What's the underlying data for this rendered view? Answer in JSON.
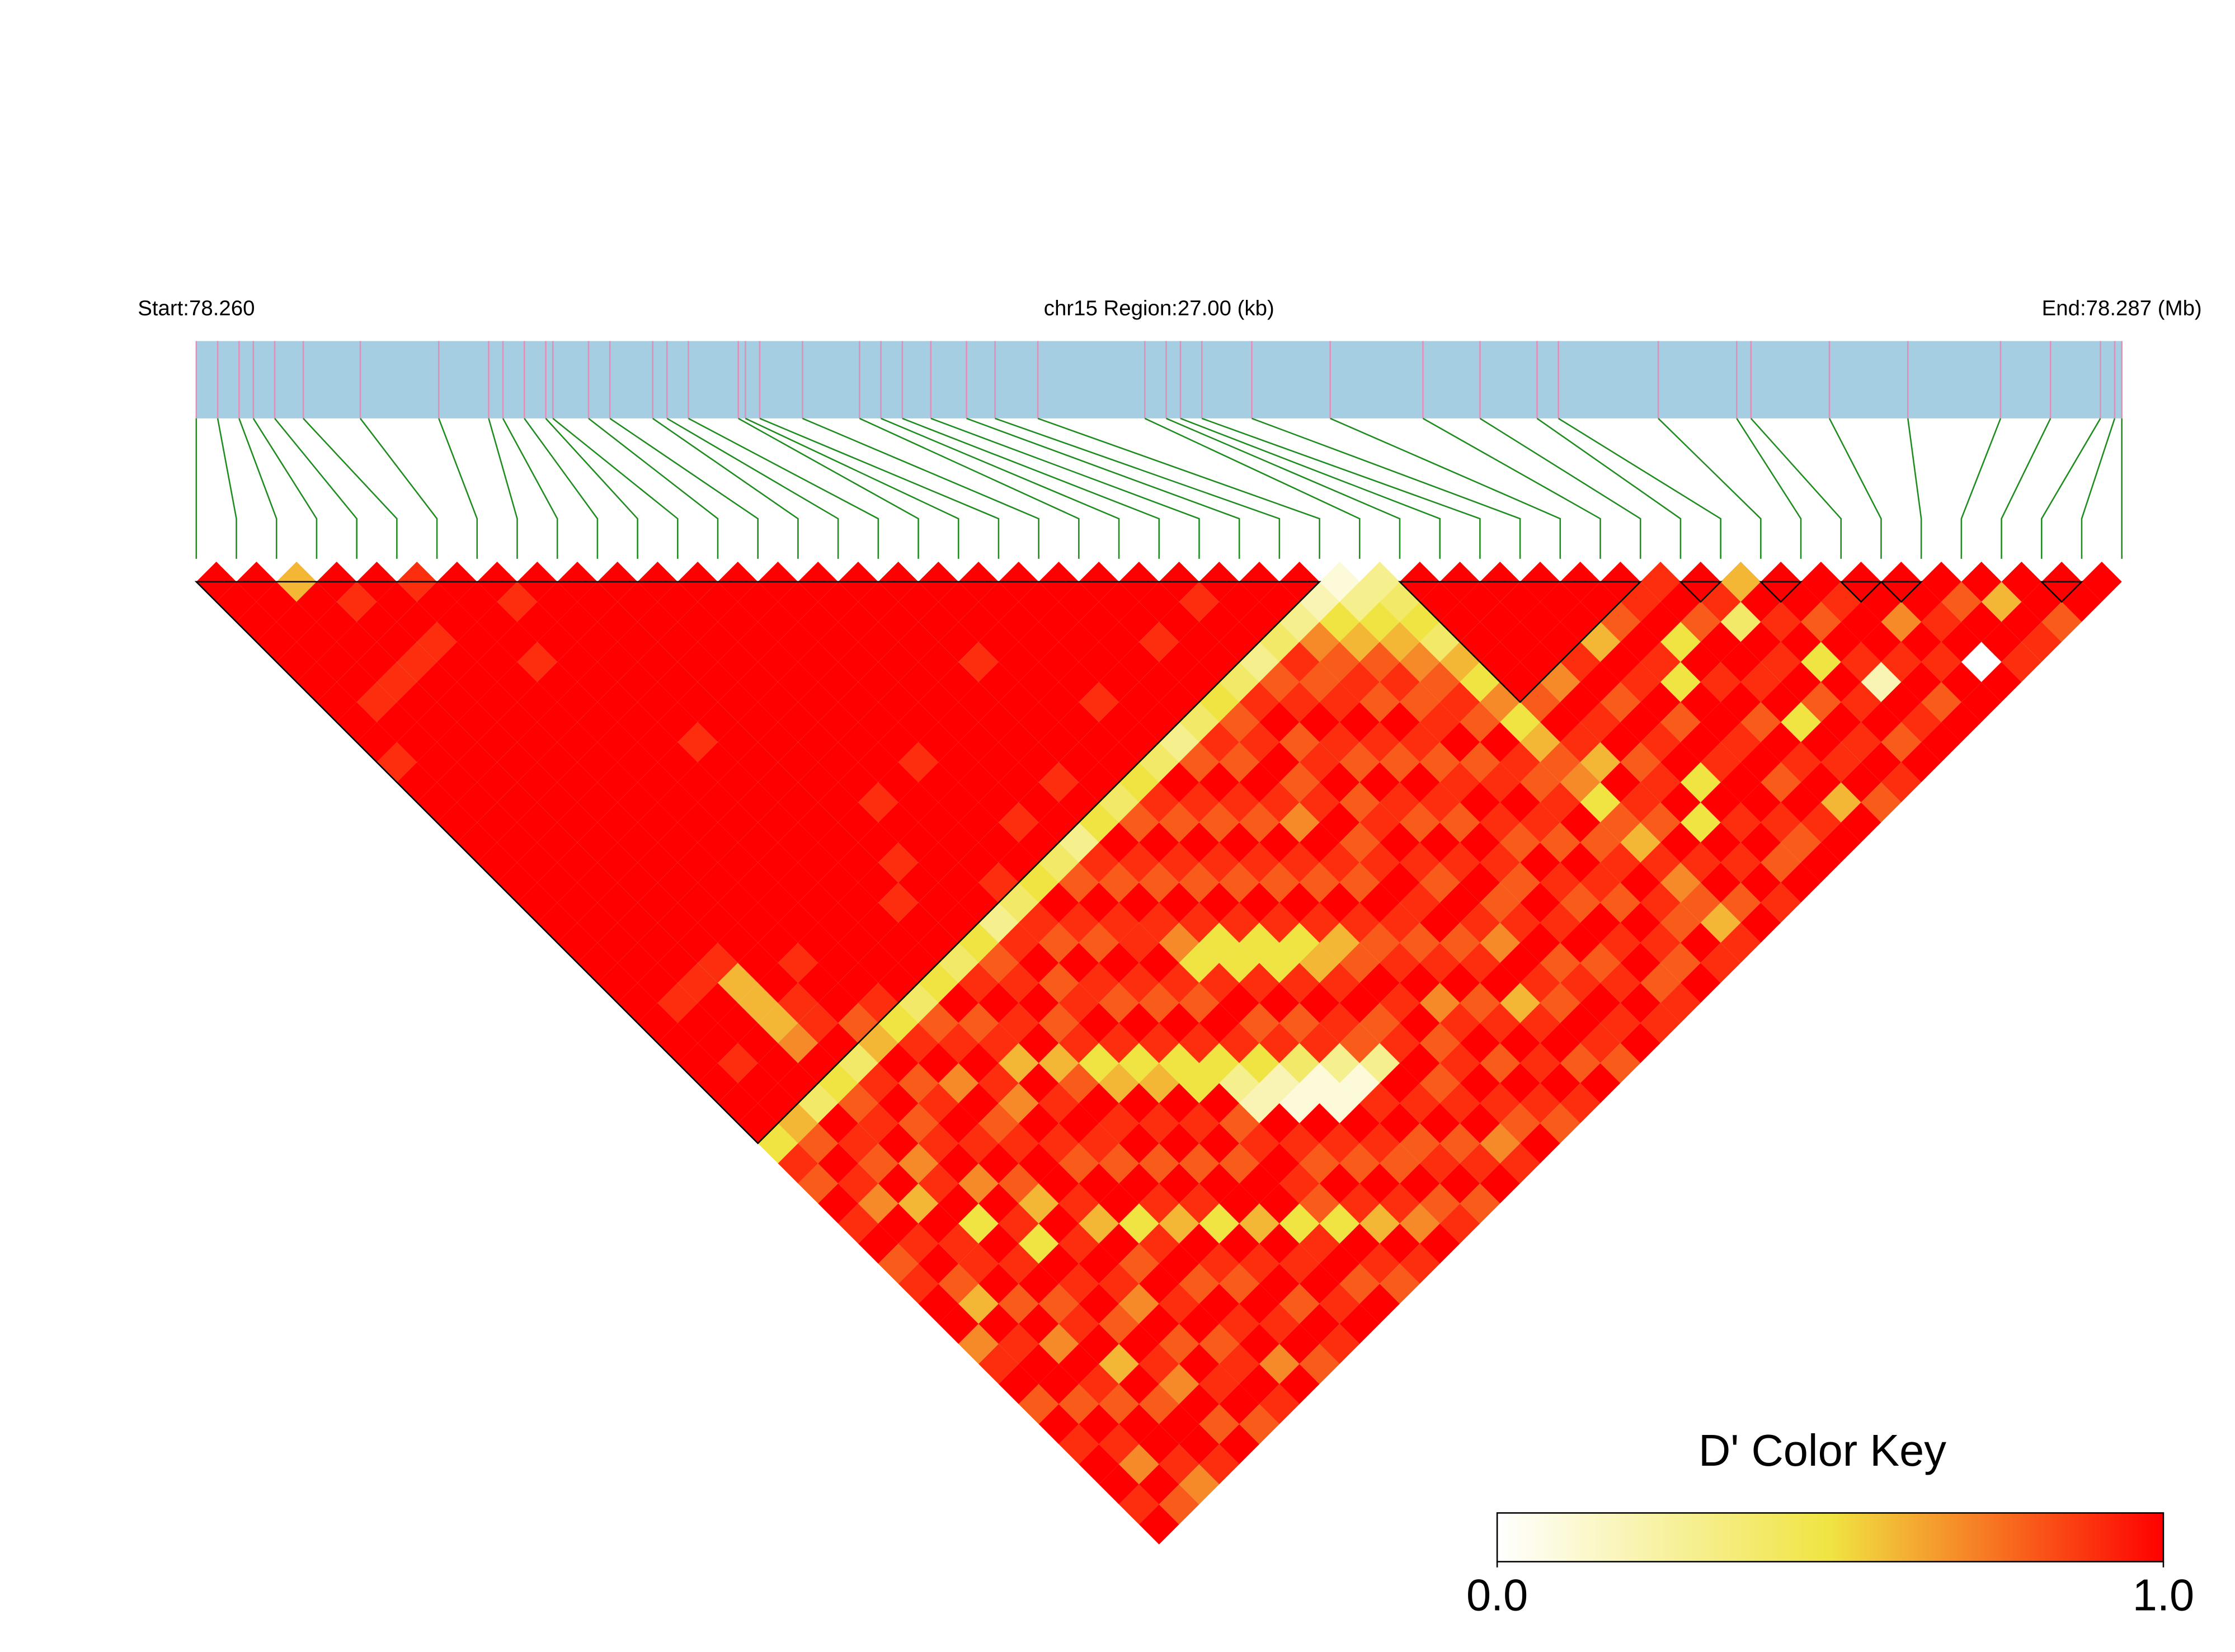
{
  "chart_data": {
    "type": "ld-heatmap",
    "start_label": "Start:78.260",
    "region_label": "chr15 Region:27.00 (kb)",
    "end_label": "End:78.287 (Mb)",
    "xlim": [
      78.26,
      78.287
    ],
    "bar_color": "#a6cee3",
    "snp_line_color": "#e28fb8",
    "connector_color": "#1e8c1e",
    "block_outline_color": "#000000",
    "snp_positions": [
      78.26,
      78.2603,
      78.2606,
      78.2608,
      78.2611,
      78.2615,
      78.2623,
      78.2634,
      78.2641,
      78.2643,
      78.2646,
      78.2649,
      78.265,
      78.2655,
      78.2658,
      78.2664,
      78.2666,
      78.2669,
      78.2676,
      78.2677,
      78.2679,
      78.2685,
      78.2693,
      78.2696,
      78.2699,
      78.2703,
      78.2708,
      78.2712,
      78.2718,
      78.2733,
      78.2736,
      78.2738,
      78.2741,
      78.2748,
      78.2759,
      78.2772,
      78.278,
      78.2788,
      78.2791,
      78.2805,
      78.2816,
      78.2818,
      78.2829,
      78.284,
      78.2853,
      78.286,
      78.2867,
      78.2869,
      78.287
    ],
    "blocks": [
      [
        0,
        28
      ],
      [
        30,
        36
      ],
      [
        37,
        38
      ],
      [
        39,
        40
      ],
      [
        41,
        42
      ],
      [
        42,
        43
      ],
      [
        46,
        47
      ]
    ],
    "d_prime": [
      [
        1,
        1,
        1,
        1,
        1,
        1,
        1,
        1,
        1,
        0.9,
        1,
        1,
        1,
        1,
        1,
        1,
        1,
        1,
        1,
        1,
        1,
        1,
        1,
        1,
        1,
        1,
        1,
        1,
        0.5,
        0.9,
        0.8,
        1,
        0.9,
        1,
        0.8,
        0.9,
        1,
        1,
        0.7,
        0.9,
        1,
        0.8,
        1,
        0.9,
        1,
        1,
        0.9,
        1
      ],
      [
        1,
        1,
        1,
        1,
        1,
        1,
        0.9,
        1,
        1,
        1,
        1,
        1,
        1,
        1,
        1,
        1,
        1,
        1,
        1,
        1,
        1,
        0.9,
        1,
        1,
        0.9,
        1,
        1,
        0.6,
        0.8,
        1,
        0.9,
        0.7,
        1,
        0.9,
        1,
        0.8,
        0.6,
        1,
        0.9,
        1,
        1,
        0.8,
        1,
        0.9,
        0.7,
        1,
        0.8
      ],
      [
        0.6,
        1,
        1,
        1,
        1,
        0.9,
        1,
        1,
        1,
        1,
        1,
        1,
        1,
        1,
        1,
        1,
        1,
        1,
        1,
        1,
        0.9,
        1,
        1,
        1,
        1,
        1,
        0.4,
        1,
        0.9,
        0.8,
        1,
        0.6,
        1,
        0.9,
        0.9,
        1,
        0.8,
        1,
        0.7,
        1,
        0.9,
        0.8,
        1,
        1,
        0.9,
        0.7
      ],
      [
        1,
        0.9,
        1,
        1,
        0.9,
        1,
        1,
        1,
        1,
        1,
        1,
        1,
        1,
        1,
        1,
        1,
        1,
        1,
        1,
        0.9,
        0.6,
        0.6,
        0.6,
        0.7,
        1,
        0.5,
        0.8,
        0.9,
        1,
        0.7,
        0.9,
        1,
        0.5,
        1,
        0.9,
        1,
        0.8,
        0.9,
        1,
        0.6,
        1,
        0.8,
        1,
        1,
        0.9
      ],
      [
        1,
        1,
        1,
        0.9,
        1,
        1,
        1,
        1,
        1,
        1,
        1,
        1,
        1,
        1,
        1,
        1,
        1,
        1,
        1,
        1,
        1,
        0.9,
        0.9,
        1,
        0.4,
        0.9,
        1,
        0.8,
        0.9,
        1,
        0.7,
        1,
        0.9,
        0.5,
        1,
        0.9,
        1,
        0.8,
        1,
        0.9,
        0.7,
        1,
        0.8,
        1
      ],
      [
        0.9,
        1,
        1,
        1,
        1,
        1,
        1,
        1,
        1,
        1,
        1,
        1,
        1,
        1,
        1,
        1,
        1,
        1,
        1,
        0.9,
        1,
        1,
        0.8,
        0.6,
        1,
        0.8,
        0.9,
        1,
        0.9,
        1,
        0.8,
        0.6,
        1,
        0.9,
        1,
        0.9,
        0.7,
        1,
        0.8,
        1,
        0.9,
        1,
        0.8
      ],
      [
        1,
        1,
        1,
        1,
        0.9,
        1,
        1,
        1,
        1,
        1,
        1,
        1,
        1,
        1,
        1,
        1,
        1,
        1,
        1,
        1,
        1,
        0.9,
        0.5,
        0.9,
        1,
        0.7,
        1,
        0.8,
        0.9,
        1,
        1,
        0.9,
        0.6,
        1,
        0.8,
        1,
        0.9,
        1,
        0.8,
        0.9,
        1,
        0.9
      ],
      [
        1,
        0.9,
        1,
        1,
        1,
        1,
        1,
        1,
        1,
        1,
        1,
        1,
        1,
        1,
        1,
        1,
        1,
        1,
        1,
        1,
        1,
        0.4,
        0.8,
        0.9,
        1,
        0.9,
        0.7,
        1,
        0.9,
        0.8,
        1,
        1,
        0.5,
        0.9,
        1,
        0.8,
        1,
        0.9,
        1,
        0.7,
        1
      ],
      [
        1,
        1,
        1,
        1,
        1,
        1,
        1,
        1,
        0.9,
        1,
        1,
        1,
        1,
        1,
        1,
        1,
        1,
        1,
        1,
        1,
        0.5,
        1,
        0.8,
        0.9,
        0.6,
        1,
        0.9,
        1,
        0.9,
        0.8,
        1,
        0.9,
        0.6,
        1,
        0.9,
        0.8,
        1,
        0.9,
        1,
        0.8
      ],
      [
        1,
        1,
        1,
        1,
        1,
        1,
        1,
        1,
        1,
        1,
        1,
        1,
        1,
        1,
        1,
        1,
        0.9,
        1,
        1,
        0.4,
        0.9,
        1,
        0.9,
        1,
        0.6,
        0.8,
        1,
        0.9,
        1,
        0.8,
        1,
        0.9,
        0.5,
        1,
        0.9,
        1,
        0.8,
        1,
        0.9
      ],
      [
        1,
        1,
        1,
        1,
        1,
        1,
        1,
        1,
        1,
        1,
        1,
        1,
        1,
        1,
        0.9,
        1,
        1,
        1,
        0.5,
        0.8,
        0.9,
        1,
        0.8,
        0.9,
        0.5,
        0.6,
        1,
        0.9,
        1,
        0.8,
        1,
        1,
        0.6,
        1,
        0.9,
        1,
        0.9,
        1
      ],
      [
        1,
        1,
        1,
        1,
        1,
        1,
        1,
        1,
        1,
        1,
        1,
        0.9,
        1,
        1,
        1,
        1,
        1,
        0.3,
        0.9,
        1,
        0.8,
        0.9,
        1,
        0.9,
        0.5,
        0.6,
        1,
        0.9,
        1,
        0.8,
        1,
        1,
        0.5,
        0.9,
        1,
        0.8,
        1
      ],
      [
        1,
        1,
        1,
        1,
        1,
        1,
        1,
        1,
        1,
        1,
        1,
        1,
        1,
        1,
        1,
        0.9,
        0.4,
        0.9,
        0.8,
        1,
        0.9,
        0.8,
        1,
        0.9,
        0.5,
        0.5,
        1,
        0.8,
        0.9,
        1,
        0.9,
        0.8,
        0.5,
        1,
        0.9,
        0.8
      ],
      [
        1,
        1,
        1,
        1,
        1,
        1,
        1,
        1,
        1,
        0.9,
        1,
        1,
        1,
        1,
        1,
        0.5,
        1,
        0.9,
        0.8,
        1,
        0.9,
        0.8,
        1,
        0.9,
        0.5,
        0.3,
        0.2,
        1,
        0.9,
        0.8,
        1,
        0.9,
        0.6,
        1,
        0.9
      ],
      [
        1,
        1,
        1,
        1,
        1,
        1,
        1,
        1,
        1,
        1,
        1,
        1,
        0.9,
        1,
        0.4,
        0.8,
        1,
        0.9,
        0.9,
        1,
        0.9,
        0.8,
        1,
        0.9,
        0.5,
        0.2,
        0.1,
        1,
        0.9,
        0.8,
        1,
        0.9,
        0.7,
        1
      ],
      [
        1,
        1,
        1,
        1,
        1,
        1,
        1,
        1,
        1,
        1,
        1,
        1,
        1,
        0.3,
        0.9,
        0.8,
        1,
        0.9,
        0.7,
        0.5,
        0.9,
        1,
        0.8,
        0.9,
        0.4,
        0.1,
        0.1,
        1,
        0.9,
        0.8,
        1,
        0.8,
        0.9
      ],
      [
        1,
        1,
        1,
        1,
        1,
        1,
        1,
        1,
        1,
        1,
        0.9,
        1,
        0.5,
        1,
        0.9,
        0.8,
        1,
        0.9,
        0.5,
        0.5,
        0.9,
        1,
        0.8,
        0.9,
        0.3,
        0.1,
        0.9,
        1,
        0.8,
        0.9,
        1,
        0.8
      ],
      [
        1,
        1,
        1,
        1,
        0.9,
        1,
        1,
        1,
        1,
        1,
        1,
        0.4,
        0.8,
        1,
        0.9,
        0.8,
        1,
        0.9,
        0.5,
        0.5,
        0.9,
        1,
        0.9,
        0.8,
        0.3,
        1,
        0.9,
        1,
        0.8,
        0.9,
        1
      ],
      [
        1,
        1,
        1,
        1,
        1,
        1,
        1,
        1,
        1,
        1,
        0.5,
        0.9,
        0.8,
        1,
        0.9,
        0.8,
        1,
        0.9,
        0.5,
        0.6,
        0.9,
        1,
        0.8,
        0.9,
        1,
        0.8,
        0.9,
        1,
        0.7,
        0.9
      ],
      [
        1,
        1,
        1,
        1,
        1,
        1,
        0.9,
        1,
        1,
        0.4,
        1,
        0.9,
        0.8,
        1,
        0.9,
        0.8,
        1,
        0.9,
        0.6,
        0.8,
        1,
        0.9,
        1,
        0.8,
        0.9,
        1,
        0.9,
        0.8,
        1
      ],
      [
        1,
        1,
        1,
        1,
        1,
        1,
        1,
        1,
        0.3,
        0.8,
        1,
        0.9,
        0.8,
        1,
        0.9,
        0.8,
        1,
        0.9,
        0.8,
        0.9,
        1,
        0.7,
        0.9,
        1,
        0.8,
        1,
        0.9,
        0.8
      ],
      [
        1,
        1,
        1,
        1,
        1,
        1,
        1,
        0.4,
        0.9,
        0.8,
        1,
        0.9,
        0.7,
        1,
        0.9,
        0.8,
        1,
        0.9,
        0.8,
        0.9,
        1,
        0.8,
        0.9,
        1,
        0.9,
        1,
        0.9
      ],
      [
        1,
        1,
        1,
        0.9,
        1,
        1,
        0.5,
        0.8,
        0.9,
        1,
        0.8,
        0.9,
        1,
        0.8,
        0.9,
        1,
        0.9,
        1,
        0.8,
        0.9,
        1,
        0.6,
        0.9,
        1,
        0.8,
        1
      ],
      [
        1,
        1,
        1,
        1,
        1,
        0.4,
        0.9,
        1,
        0.8,
        0.9,
        1,
        0.8,
        0.9,
        1,
        0.9,
        0.8,
        1,
        0.9,
        0.7,
        1,
        0.9,
        0.8,
        1,
        0.9,
        0.8
      ],
      [
        1,
        0.9,
        1,
        1,
        0.3,
        0.8,
        0.9,
        1,
        0.9,
        0.8,
        1,
        0.9,
        0.8,
        1,
        0.9,
        1,
        0.8,
        0.9,
        1,
        0.8,
        0.9,
        1,
        0.9,
        1
      ],
      [
        1,
        1,
        1,
        0.4,
        0.9,
        0.8,
        0.9,
        1,
        0.9,
        0.8,
        1,
        0.9,
        0.8,
        1,
        0.9,
        0.8,
        1,
        0.9,
        1,
        0.8,
        0.9,
        1,
        0.9
      ],
      [
        1,
        1,
        0.3,
        0.7,
        0.8,
        0.9,
        0.8,
        1,
        0.9,
        0.8,
        0.9,
        1,
        0.9,
        0.8,
        1,
        0.9,
        0.8,
        1,
        0.9,
        1,
        0.8,
        0.9
      ],
      [
        1,
        0.2,
        0.5,
        0.6,
        0.8,
        0.9,
        0.8,
        0.9,
        1,
        0.8,
        0.9,
        1,
        0.9,
        0.8,
        1,
        0.9,
        0.8,
        1,
        0.9,
        0.8,
        1
      ],
      [
        0.1,
        0.3,
        0.5,
        0.6,
        0.7,
        0.8,
        0.9,
        0.8,
        1,
        0.9,
        0.8,
        0.9,
        1,
        0.8,
        0.9,
        1,
        0.9,
        0.8,
        1,
        0.9
      ],
      [
        0.3,
        0.4,
        0.5,
        0.4,
        0.6,
        0.5,
        0.7,
        0.5,
        0.6,
        0.8,
        0.7,
        0.5,
        0.8,
        0.6,
        0.9,
        0.7,
        0.8,
        0.6,
        0.9
      ],
      [
        1,
        1,
        1,
        1,
        1,
        1,
        0.8,
        1,
        0.9,
        0.6,
        1,
        0.9,
        0.8,
        1,
        0.9,
        1,
        0.8,
        1
      ],
      [
        1,
        1,
        1,
        1,
        1,
        0.7,
        1,
        0.9,
        1,
        0.8,
        0.9,
        1,
        0.5,
        1,
        0.9,
        1,
        0.9
      ],
      [
        1,
        1,
        1,
        1,
        0.9,
        1,
        0.8,
        1,
        0.9,
        1,
        0.5,
        1,
        0.9,
        1,
        0.8,
        1
      ],
      [
        1,
        1,
        1,
        0.6,
        1,
        0.9,
        1,
        0.8,
        1,
        0.9,
        1,
        1,
        0.9,
        0.8,
        1
      ],
      [
        1,
        1,
        0.8,
        1,
        0.9,
        0.5,
        1,
        1,
        0.9,
        1,
        0.8,
        1,
        0.9,
        1
      ],
      [
        1,
        0.9,
        1,
        0.5,
        1,
        0.9,
        1,
        0.8,
        1,
        0.9,
        1,
        0.6,
        1
      ],
      [
        0.9,
        1,
        0.8,
        1,
        1,
        0.9,
        1,
        0.5,
        1,
        0.9,
        1,
        0.8
      ],
      [
        1,
        0.9,
        0.4,
        1,
        0.9,
        1,
        0.8,
        1,
        0.9,
        1,
        0.9
      ],
      [
        0.6,
        1,
        0.9,
        1,
        0.5,
        1,
        0.9,
        1,
        0.8,
        1
      ],
      [
        1,
        1,
        0.8,
        1,
        0.9,
        0.2,
        1,
        0.9,
        1
      ],
      [
        1,
        0.9,
        1,
        1,
        0.9,
        1,
        0.8,
        1
      ],
      [
        1,
        1,
        0.7,
        1,
        0.9,
        1,
        1
      ],
      [
        1,
        1,
        0.9,
        1,
        0,
        1
      ],
      [
        1,
        0.8,
        1,
        1,
        0.9
      ],
      [
        1,
        0.6,
        1,
        0.9
      ],
      [
        1,
        1,
        0.8
      ],
      [
        1,
        1
      ],
      [
        1
      ]
    ],
    "colorbar": {
      "title": "D' Color Key",
      "lim": [
        0,
        1
      ],
      "ticks": [
        {
          "value": 0,
          "label": "0.0"
        },
        {
          "value": 1,
          "label": "1.0"
        }
      ],
      "colors": [
        "#ffffff",
        "#f0e442",
        "#ff0000"
      ]
    }
  }
}
